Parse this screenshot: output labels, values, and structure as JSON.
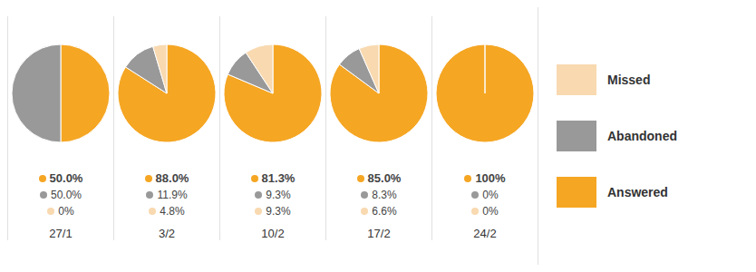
{
  "chart_data": [
    {
      "type": "pie",
      "title": "27/1",
      "categories": [
        "Answered",
        "Abandoned",
        "Missed"
      ],
      "values": [
        50.0,
        50.0,
        0.0
      ],
      "value_labels": [
        "50.0%",
        "50.0%",
        "0%"
      ],
      "colors": [
        "#F5A623",
        "#999999",
        "#F8D9B0"
      ],
      "data_labels": true,
      "legend": "right"
    },
    {
      "type": "pie",
      "title": "3/2",
      "categories": [
        "Answered",
        "Abandoned",
        "Missed"
      ],
      "values": [
        88.0,
        11.9,
        4.8
      ],
      "value_labels": [
        "88.0%",
        "11.9%",
        "4.8%"
      ],
      "colors": [
        "#F5A623",
        "#999999",
        "#F8D9B0"
      ],
      "data_labels": true,
      "legend": "right"
    },
    {
      "type": "pie",
      "title": "10/2",
      "categories": [
        "Answered",
        "Abandoned",
        "Missed"
      ],
      "values": [
        81.3,
        9.3,
        9.3
      ],
      "value_labels": [
        "81.3%",
        "9.3%",
        "9.3%"
      ],
      "colors": [
        "#F5A623",
        "#999999",
        "#F8D9B0"
      ],
      "data_labels": true,
      "legend": "right"
    },
    {
      "type": "pie",
      "title": "17/2",
      "categories": [
        "Answered",
        "Abandoned",
        "Missed"
      ],
      "values": [
        85.0,
        8.3,
        6.6
      ],
      "value_labels": [
        "85.0%",
        "8.3%",
        "6.6%"
      ],
      "colors": [
        "#F5A623",
        "#999999",
        "#F8D9B0"
      ],
      "data_labels": true,
      "legend": "right"
    },
    {
      "type": "pie",
      "title": "24/2",
      "categories": [
        "Answered",
        "Abandoned",
        "Missed"
      ],
      "values": [
        100.0,
        0.0,
        0.0
      ],
      "value_labels": [
        "100%",
        "0%",
        "0%"
      ],
      "colors": [
        "#F5A623",
        "#999999",
        "#F8D9B0"
      ],
      "data_labels": true,
      "legend": "right"
    }
  ]
}
